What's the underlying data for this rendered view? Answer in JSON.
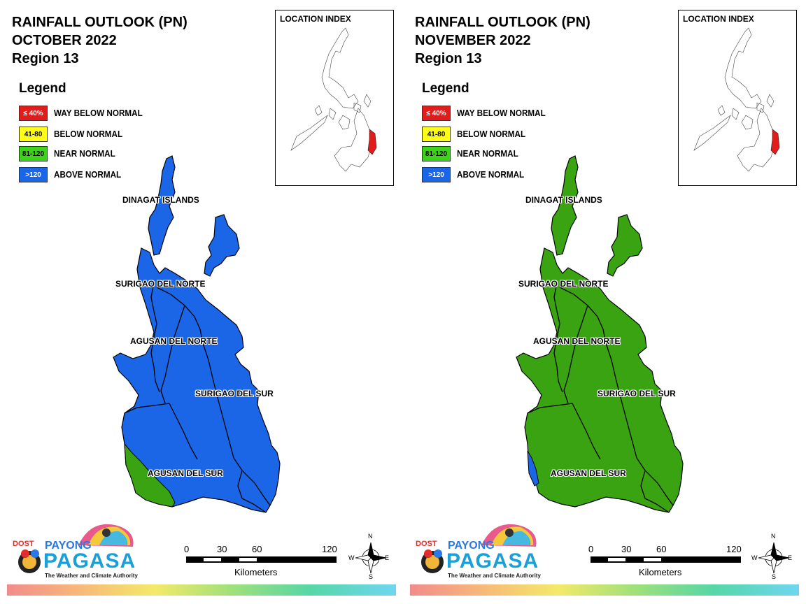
{
  "panels": [
    {
      "title_line1": "RAINFALL OUTLOOK (PN)",
      "title_line2": "OCTOBER 2022",
      "title_line3": "Region 13",
      "region_color": "#1a66e6",
      "corner_color": "#3aa312"
    },
    {
      "title_line1": "RAINFALL OUTLOOK (PN)",
      "title_line2": "NOVEMBER 2022",
      "title_line3": "Region 13",
      "region_color": "#3aa312",
      "corner_color": "#1a66e6"
    }
  ],
  "legend": {
    "heading": "Legend",
    "items": [
      {
        "swatch": "≤ 40%",
        "label": "WAY BELOW NORMAL",
        "color": "#e21b1b",
        "text_color": "#ffffff"
      },
      {
        "swatch": "41-80",
        "label": "BELOW NORMAL",
        "color": "#ffff1a",
        "text_color": "#000000"
      },
      {
        "swatch": "81-120",
        "label": "NEAR NORMAL",
        "color": "#3fd21a",
        "text_color": "#000000"
      },
      {
        "swatch": ">120",
        "label": "ABOVE NORMAL",
        "color": "#1a66e6",
        "text_color": "#ffffff"
      }
    ]
  },
  "inset": {
    "title": "LOCATION INDEX",
    "highlight_color": "#e21b1b"
  },
  "provinces": {
    "dinagat": "DINAGAT ISLANDS",
    "surigao_norte": "SURIGAO DEL NORTE",
    "agusan_norte": "AGUSAN DEL NORTE",
    "surigao_sur": "SURIGAO DEL SUR",
    "agusan_sur": "AGUSAN DEL SUR"
  },
  "logo": {
    "dost": "DOST",
    "payong": "PAYONG",
    "pagasa": "PAGASA",
    "tagline": "The Weather and Climate Authority"
  },
  "scale": {
    "ticks": [
      "0",
      "30",
      "60",
      "120"
    ],
    "unit": "Kilometers"
  },
  "compass": {
    "n": "N",
    "s": "S",
    "e": "E",
    "w": "W"
  }
}
